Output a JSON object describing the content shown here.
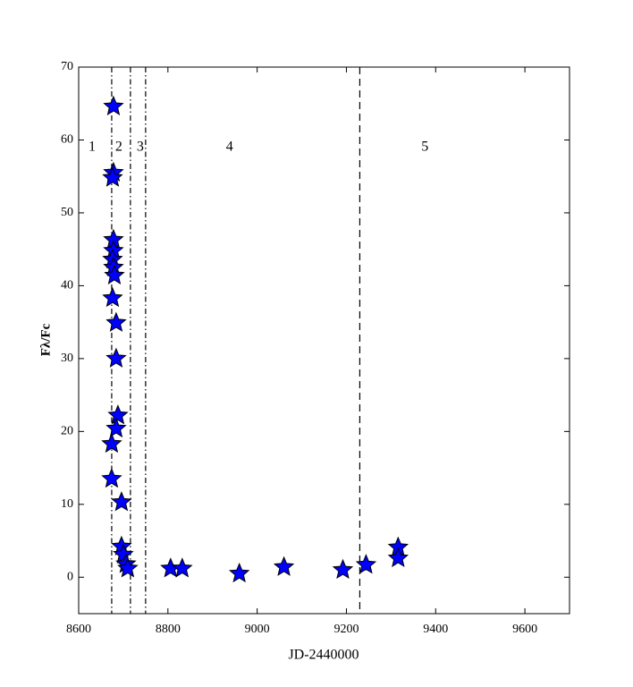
{
  "chart_data": {
    "type": "scatter",
    "xlabel": "JD-2440000",
    "ylabel": "Fλ/Fc",
    "xlim": [
      8600,
      9700
    ],
    "ylim": [
      -5,
      70
    ],
    "xticks": [
      8600,
      8800,
      9000,
      9200,
      9400,
      9600
    ],
    "yticks": [
      0,
      10,
      20,
      30,
      40,
      50,
      60,
      70
    ],
    "series": [
      {
        "color": "#0000ff",
        "x": [
          8678,
          8678,
          8676,
          8678,
          8678,
          8676,
          8678,
          8680,
          8676,
          8684,
          8684,
          8688,
          8684,
          8674,
          8674,
          8696,
          8696,
          8700,
          8706,
          8710,
          8806,
          8832,
          8960,
          9060,
          9192,
          9244,
          9316,
          9316
        ],
        "values": [
          64.6,
          55.5,
          54.8,
          46.3,
          44.8,
          43.6,
          42.5,
          41.4,
          38.3,
          34.9,
          30.0,
          22.2,
          20.4,
          18.3,
          13.5,
          10.3,
          4.2,
          3.1,
          1.8,
          1.2,
          1.2,
          1.2,
          0.5,
          1.4,
          1.0,
          1.7,
          4.1,
          2.6
        ]
      }
    ],
    "vlines": [
      {
        "x": 8674,
        "style": "dashdot"
      },
      {
        "x": 8716,
        "style": "dashdot"
      },
      {
        "x": 8750,
        "style": "dashdot"
      },
      {
        "x": 9230,
        "style": "dashed"
      }
    ],
    "regions": [
      {
        "label": "1",
        "x": 8630,
        "y": 59
      },
      {
        "label": "2",
        "x": 8690,
        "y": 59
      },
      {
        "label": "3",
        "x": 8738,
        "y": 59
      },
      {
        "label": "4",
        "x": 8938,
        "y": 59
      },
      {
        "label": "5",
        "x": 9376,
        "y": 59
      }
    ]
  }
}
